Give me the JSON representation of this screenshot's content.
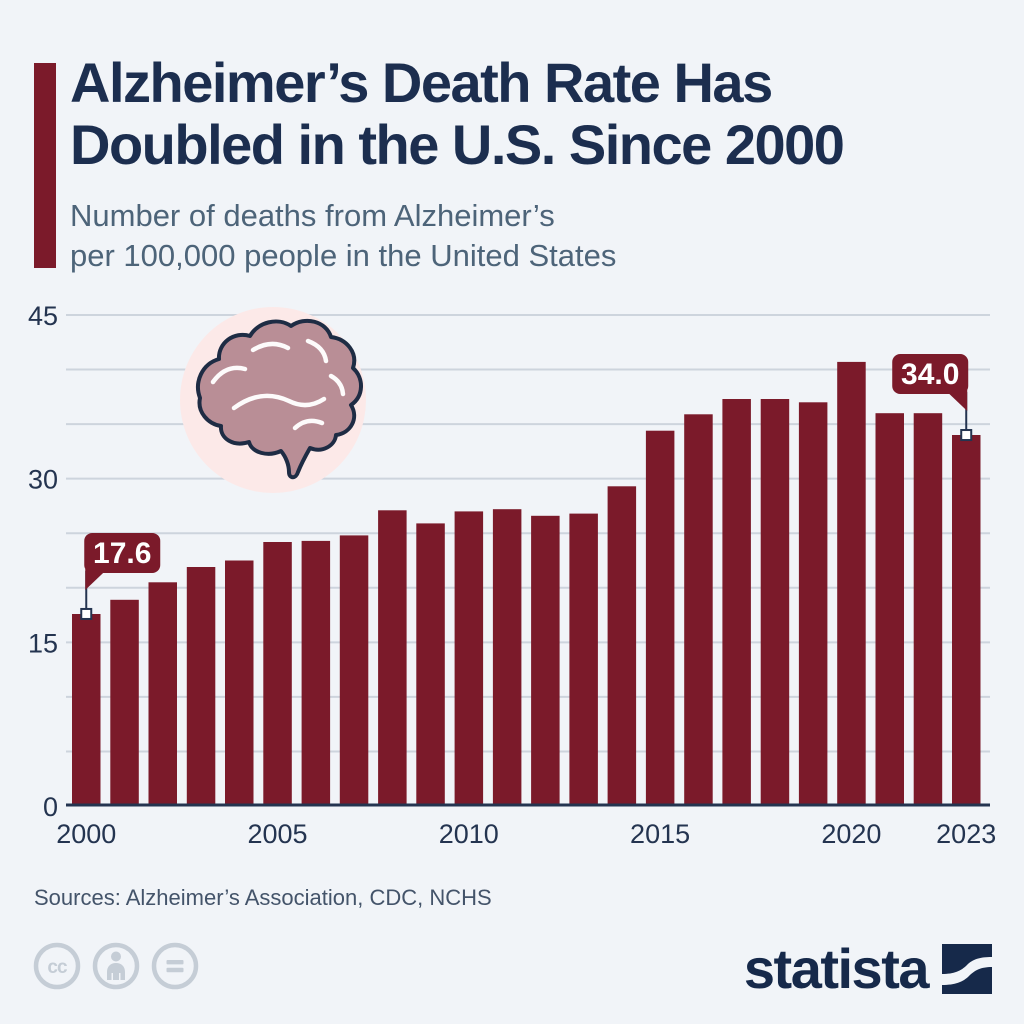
{
  "header": {
    "title_line1": "Alzheimer’s Death Rate Has",
    "title_line2": "Doubled in the U.S. Since 2000",
    "subtitle_line1": "Number of deaths from Alzheimer’s",
    "subtitle_line2": "per 100,000 people in the United States"
  },
  "chart_data": {
    "type": "bar",
    "title": "Alzheimer’s Death Rate Has Doubled in the U.S. Since 2000",
    "subtitle": "Number of deaths from Alzheimer’s per 100,000 people in the United States",
    "categories": [
      2000,
      2001,
      2002,
      2003,
      2004,
      2005,
      2006,
      2007,
      2008,
      2009,
      2010,
      2011,
      2012,
      2013,
      2014,
      2015,
      2016,
      2017,
      2018,
      2019,
      2020,
      2021,
      2022,
      2023
    ],
    "values": [
      17.6,
      18.9,
      20.5,
      21.9,
      22.5,
      24.2,
      24.3,
      24.8,
      27.1,
      25.9,
      27.0,
      27.2,
      26.6,
      26.8,
      29.3,
      34.4,
      35.9,
      37.3,
      37.3,
      37.0,
      40.7,
      36.0,
      36.0,
      34.0
    ],
    "ylim": [
      0,
      45
    ],
    "grid_step": 5,
    "grid": true,
    "legend": null,
    "y_tick_values": [
      0,
      15,
      30,
      45
    ],
    "x_tick_years": [
      2000,
      2005,
      2010,
      2015,
      2020,
      2023
    ],
    "annotations": [
      {
        "year": 2000,
        "label": "17.6",
        "tail_side": "left"
      },
      {
        "year": 2023,
        "label": "34.0",
        "tail_side": "right"
      }
    ],
    "bar_color": "#7b1a2a"
  },
  "footer": {
    "sources": "Sources: Alzheimer’s Association, CDC, NCHS",
    "brand": "statista",
    "license_icons": [
      "cc",
      "attribution",
      "no-derivatives"
    ]
  },
  "colors": {
    "background": "#f1f4f8",
    "bar": "#7b1a2a",
    "accent_bar": "#7b1a2a",
    "title": "#1c2e4f",
    "subtitle": "#4d6479",
    "axis": "#243450",
    "gridline": "#cdd4dd",
    "badge": "#7b1a2a",
    "badge_text": "#ffffff",
    "brain_circle": "#fce9e8",
    "brain_fill": "#b98e96",
    "brain_outline": "#1e2c44",
    "brain_sulci": "#fdfbfb",
    "license_gray": "#c5cdd6",
    "sources_text": "#44546a",
    "brand_navy": "#16294a"
  }
}
